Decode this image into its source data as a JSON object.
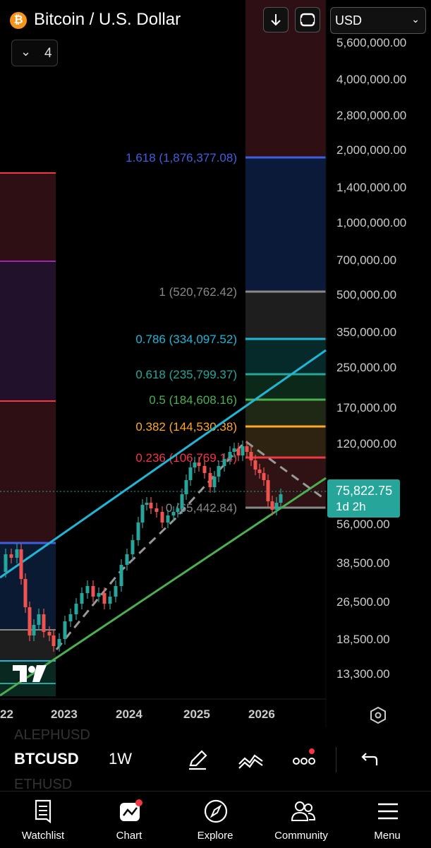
{
  "header": {
    "title": "Bitcoin / U.S. Dollar",
    "logo_symbol": "₿",
    "currency": "USD",
    "collapsed_count": "4",
    "buttons": [
      "arrow-down-icon",
      "fullscreen-icon"
    ]
  },
  "price": {
    "current": "75,822.75",
    "countdown": "1d 2h"
  },
  "price_axis_labels": [
    "5,600,000.00",
    "4,000,000.00",
    "2,800,000.00",
    "2,000,000.00",
    "1,400,000.00",
    "1,000,000.00",
    "700,000.00",
    "500,000.00",
    "350,000.00",
    "250,000.00",
    "170,000.00",
    "120,000.00",
    "56,000.00",
    "38,500.00",
    "26,500.00",
    "18,500.00",
    "13,300.00"
  ],
  "time_axis_labels": [
    "22",
    "2023",
    "2024",
    "2025",
    "2026"
  ],
  "fib_levels": [
    {
      "label": "1.618 (1,876,377.08)",
      "color": "#3f5fe0"
    },
    {
      "label": "1 (520,762.42)",
      "color": "#888888"
    },
    {
      "label": "0.786 (334,097.52)",
      "color": "#22b5d6"
    },
    {
      "label": "0.618 (235,799.37)",
      "color": "#26a69a"
    },
    {
      "label": "0.5 (184,608.16)",
      "color": "#4caf50"
    },
    {
      "label": "0.382 (144,530.38)",
      "color": "#ffa726"
    },
    {
      "label": "0.236 (106,769.14)",
      "color": "#f23645"
    },
    {
      "label": "0 (65,442.84)",
      "color": "#888888"
    }
  ],
  "symbol_bar": {
    "symbol": "BTCUSD",
    "interval": "1W",
    "ghost_above": "ALEPHUSD",
    "ghost_below": "ETHUSD"
  },
  "nav": [
    {
      "label": "Watchlist",
      "icon": "watchlist-icon"
    },
    {
      "label": "Chart",
      "icon": "chart-icon"
    },
    {
      "label": "Explore",
      "icon": "compass-icon"
    },
    {
      "label": "Community",
      "icon": "community-icon"
    },
    {
      "label": "Menu",
      "icon": "menu-icon"
    }
  ],
  "colors": {
    "up": "#26a69a",
    "down": "#ef5350",
    "accent_green": "#26a69a",
    "notification": "#f23645"
  }
}
